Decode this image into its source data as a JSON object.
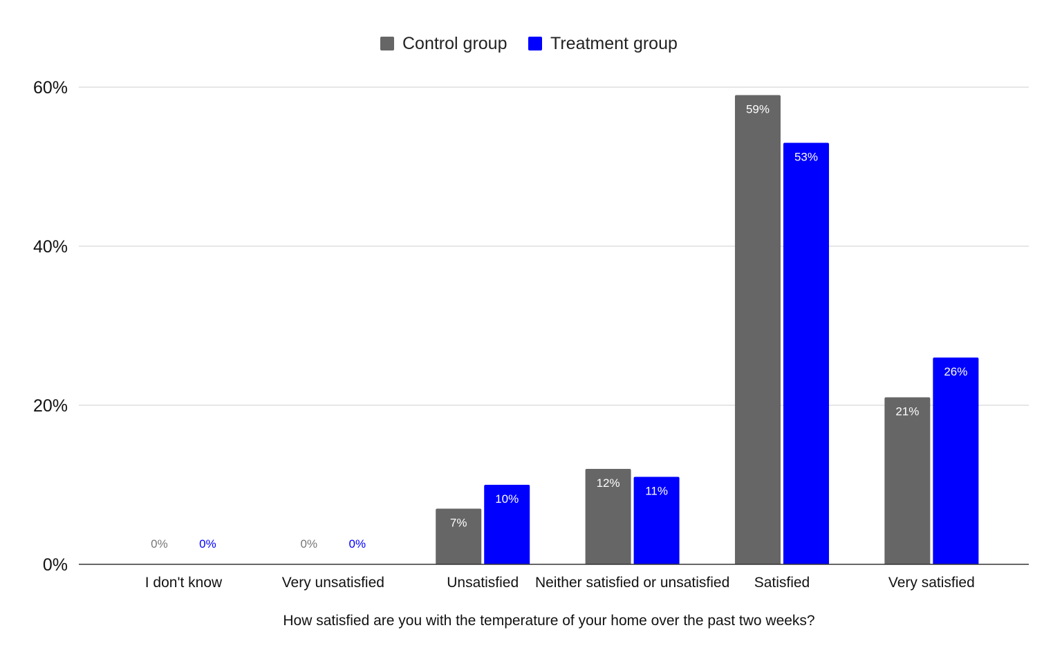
{
  "chart_data": {
    "type": "bar",
    "title": "",
    "xlabel": "How satisfied are you with the temperature of your home over the past two weeks?",
    "ylabel": "",
    "categories": [
      "I don't know",
      "Very unsatisfied",
      "Unsatisfied",
      "Neither satisfied or unsatisfied",
      "Satisfied",
      "Very satisfied"
    ],
    "series": [
      {
        "name": "Control group",
        "color": "#666666",
        "values": [
          0,
          0,
          7,
          12,
          59,
          21
        ],
        "labels": [
          "0%",
          "0%",
          "7%",
          "12%",
          "59%",
          "21%"
        ]
      },
      {
        "name": "Treatment group",
        "color": "#0000ff",
        "values": [
          0,
          0,
          10,
          11,
          53,
          26
        ],
        "labels": [
          "0%",
          "0%",
          "10%",
          "11%",
          "53%",
          "26%"
        ]
      }
    ],
    "ylim": [
      0,
      60
    ],
    "yticks": [
      0,
      20,
      40,
      60
    ],
    "ytick_labels": [
      "0%",
      "20%",
      "40%",
      "60%"
    ],
    "grid": true,
    "legend_position": "top-center"
  }
}
